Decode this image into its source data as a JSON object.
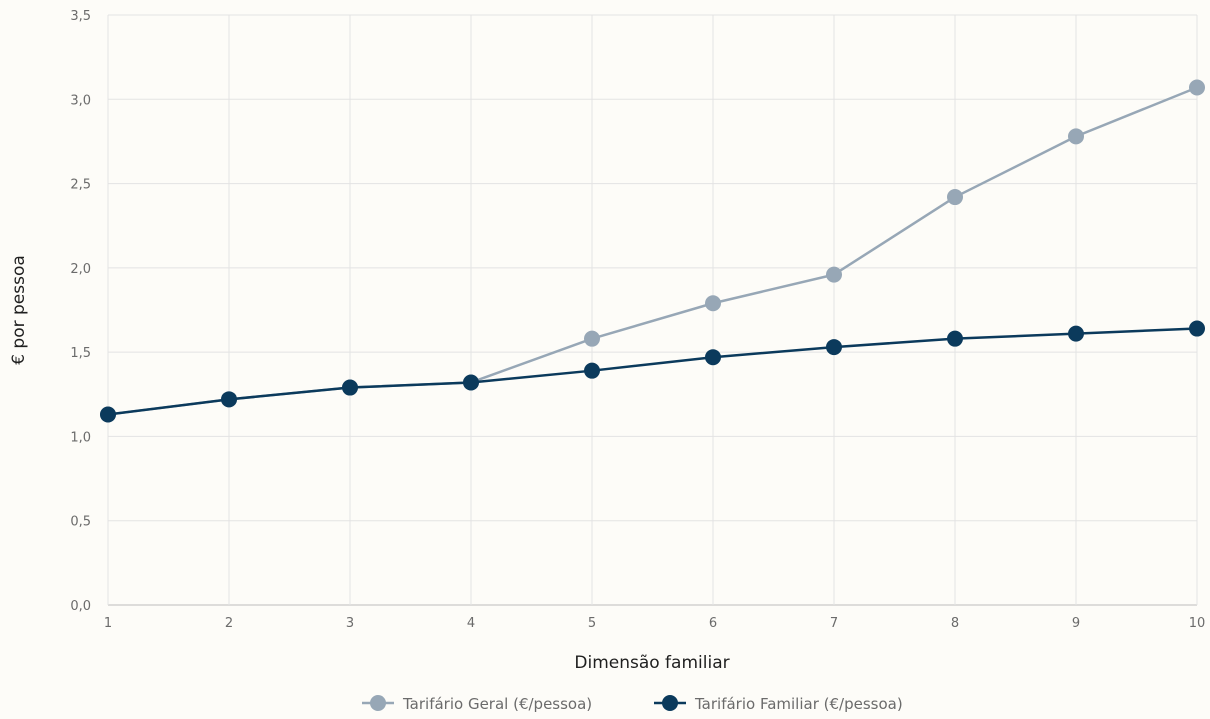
{
  "chart_data": {
    "type": "line",
    "title": "",
    "xlabel": "Dimensão familiar",
    "ylabel": "€ por pessoa",
    "x": [
      1,
      2,
      3,
      4,
      5,
      6,
      7,
      8,
      9,
      10
    ],
    "x_tick_labels": [
      "1",
      "2",
      "3",
      "4",
      "5",
      "6",
      "7",
      "8",
      "9",
      "10"
    ],
    "ylim": [
      0,
      3.5
    ],
    "y_ticks": [
      0,
      0.5,
      1,
      1.5,
      2,
      2.5,
      3,
      3.5
    ],
    "y_tick_labels": [
      "0,0",
      "0,5",
      "1,0",
      "1,5",
      "2,0",
      "2,5",
      "3,0",
      "3,5"
    ],
    "grid": true,
    "legend_position": "bottom",
    "series": [
      {
        "name": "Tarifário Geral (€/pessoa)",
        "color": "#97a7b6",
        "values": [
          1.13,
          1.22,
          1.29,
          1.32,
          1.58,
          1.79,
          1.96,
          2.42,
          2.78,
          3.07
        ]
      },
      {
        "name": "Tarifário Familiar (€/pessoa)",
        "color": "#0b3a5c",
        "values": [
          1.13,
          1.22,
          1.29,
          1.32,
          1.39,
          1.47,
          1.53,
          1.58,
          1.61,
          1.64
        ]
      }
    ]
  }
}
